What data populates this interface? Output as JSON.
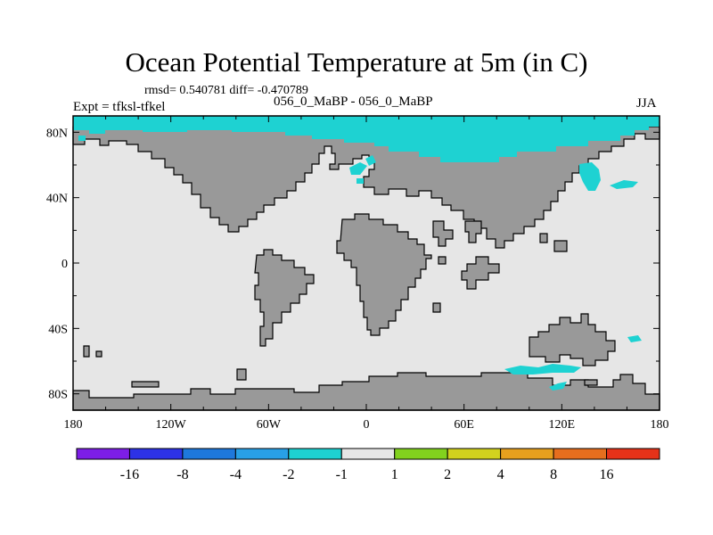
{
  "title": "Ocean Potential Temperature at 5m (in C)",
  "stats_line": "rmsd= 0.540781 diff= -0.470789",
  "experiment_label": "Expt = tfksl-tfkel",
  "experiment_pair": "056_0_MaBP - 056_0_MaBP",
  "season": "JJA",
  "map": {
    "projection": "cylindrical-equidistant",
    "lon_range": [
      -180,
      180
    ],
    "lat_range": [
      -90,
      90
    ],
    "ocean_color": "#e6e6e6",
    "land_color": "#999999",
    "x_ticks": [
      "180",
      "120W",
      "60W",
      "0",
      "60E",
      "120E",
      "180"
    ],
    "x_tick_values": [
      -180,
      -120,
      -60,
      0,
      60,
      120,
      180
    ],
    "y_ticks": [
      "80N",
      "40N",
      "0",
      "40S",
      "80S"
    ],
    "y_tick_values": [
      80,
      40,
      0,
      -40,
      -80
    ],
    "anomaly_class": "-2 to -1",
    "anomaly_color": "#1ed2d2"
  },
  "colorbar": {
    "colors": [
      "#7d1ee6",
      "#2d32e6",
      "#1e78dc",
      "#28a0e6",
      "#1ed2d2",
      "#e6e6e6",
      "#82d21e",
      "#d2d21e",
      "#e6a01e",
      "#e66e1e",
      "#e63219"
    ],
    "labels": [
      "-16",
      "-8",
      "-4",
      "-2",
      "-1",
      "1",
      "2",
      "4",
      "8",
      "16"
    ]
  }
}
